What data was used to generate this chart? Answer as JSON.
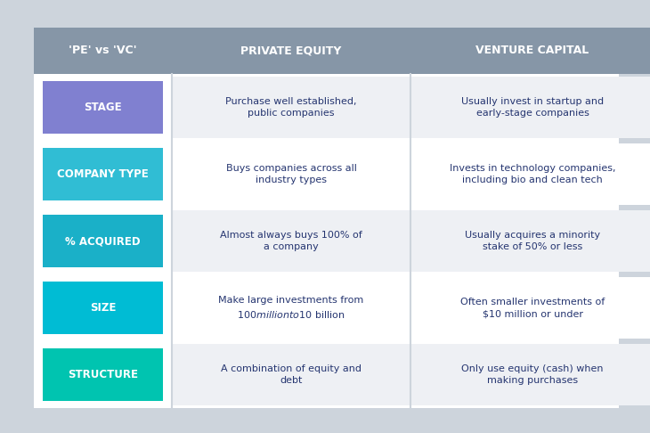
{
  "background_color": "#cdd4dc",
  "table_bg": "#ffffff",
  "header_bg": "#8696a7",
  "header_text_color": "#ffffff",
  "row_label_colors": [
    "#8080d0",
    "#30bdd4",
    "#1ab0c8",
    "#00bcd4",
    "#00c4b0"
  ],
  "row_label_text_color": "#ffffff",
  "cell_bg_odd": "#eef0f4",
  "cell_bg_even": "#ffffff",
  "text_color": "#253570",
  "header_pe_vs_vc": "'PE' vs 'VC'",
  "header_private_equity": "PRIVATE EQUITY",
  "header_venture_capital": "VENTURE CAPITAL",
  "rows": [
    {
      "label": "STAGE",
      "pe": "Purchase well established,\npublic companies",
      "vc": "Usually invest in startup and\nearly-stage companies"
    },
    {
      "label": "COMPANY TYPE",
      "pe": "Buys companies across all\nindustry types",
      "vc": "Invests in technology companies,\nincluding bio and clean tech"
    },
    {
      "label": "% ACQUIRED",
      "pe": "Almost always buys 100% of\na company",
      "vc": "Usually acquires a minority\nstake of 50% or less"
    },
    {
      "label": "SIZE",
      "pe": "Make large investments from\n$100 million to $10 billion",
      "vc": "Often smaller investments of\n$10 million or under"
    },
    {
      "label": "STRUCTURE",
      "pe": "A combination of equity and\ndebt",
      "vc": "Only use equity (cash) when\nmaking purchases"
    }
  ]
}
